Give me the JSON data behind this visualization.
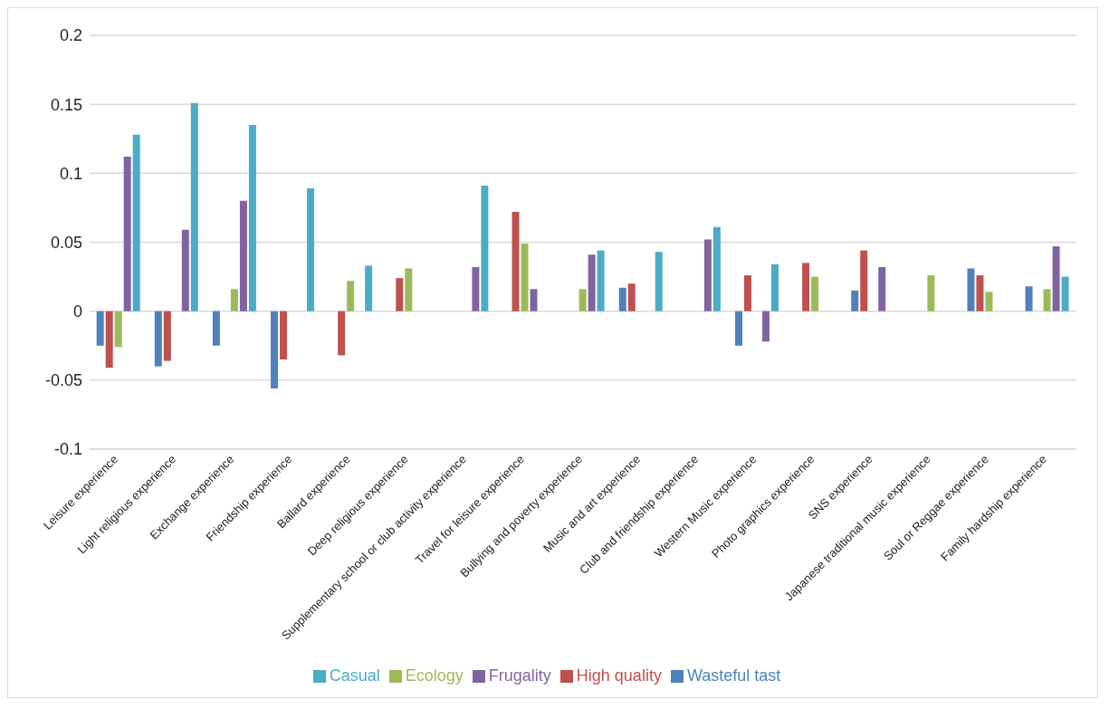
{
  "chart_data": {
    "type": "bar",
    "categories": [
      "Leisure experience",
      "Light religious experience",
      "Exchange experience",
      "Friendship experience",
      "Ballard experience",
      "Deep religious experience",
      "Supplementary school or club activity experience",
      "Travel for leisure experience",
      "Bullying and poverty experience",
      "Music and art experience",
      "Club and friendship experience",
      "Western Music experience",
      "Photo graphics experience",
      "SNS experience",
      "Japanese traditional music experience",
      "Soul or Reggae experience",
      "Family hardship experience"
    ],
    "series": [
      {
        "name": "Wasteful tast",
        "color": "#4f81bd",
        "values": [
          -0.025,
          -0.04,
          -0.025,
          -0.056,
          null,
          null,
          null,
          null,
          null,
          0.017,
          null,
          -0.025,
          null,
          0.015,
          null,
          0.031,
          0.018
        ]
      },
      {
        "name": "High quality",
        "color": "#c0504d",
        "values": [
          -0.041,
          -0.036,
          null,
          -0.035,
          -0.032,
          0.024,
          null,
          0.072,
          null,
          0.02,
          null,
          0.026,
          0.035,
          0.044,
          null,
          0.026,
          null
        ]
      },
      {
        "name": "Ecology",
        "color": "#9bbb59",
        "values": [
          -0.026,
          null,
          0.016,
          null,
          0.022,
          0.031,
          null,
          0.049,
          0.016,
          null,
          null,
          null,
          0.025,
          null,
          0.026,
          0.014,
          0.016
        ]
      },
      {
        "name": "Frugality",
        "color": "#8064a2",
        "values": [
          0.112,
          0.059,
          0.08,
          null,
          null,
          null,
          0.032,
          0.016,
          0.041,
          null,
          0.052,
          -0.022,
          null,
          0.032,
          null,
          null,
          0.047
        ]
      },
      {
        "name": "Casual",
        "color": "#4bacc6",
        "values": [
          0.128,
          0.151,
          0.135,
          0.089,
          0.033,
          null,
          0.091,
          null,
          0.044,
          0.043,
          0.061,
          0.034,
          null,
          null,
          null,
          null,
          0.025
        ]
      }
    ],
    "ylim": [
      -0.1,
      0.2
    ],
    "yticks": [
      -0.1,
      -0.05,
      0,
      0.05,
      0.1,
      0.15,
      0.2
    ],
    "grid": "y",
    "legend": "bottom"
  }
}
